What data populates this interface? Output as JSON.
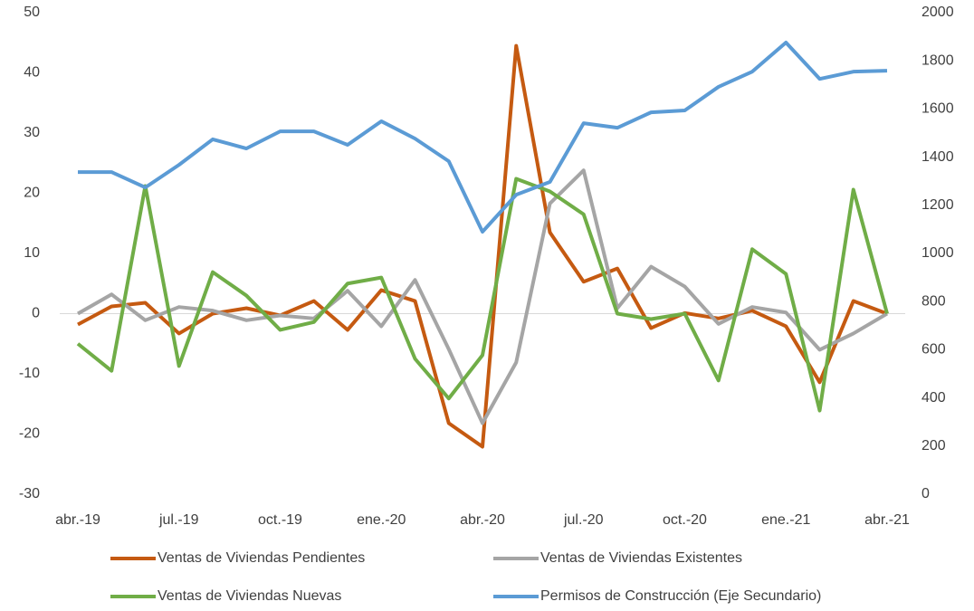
{
  "chart_data": {
    "type": "line",
    "categories": [
      "abr.-19",
      null,
      null,
      "jul.-19",
      null,
      null,
      "oct.-19",
      null,
      null,
      "ene.-20",
      null,
      null,
      "abr.-20",
      null,
      null,
      "jul.-20",
      null,
      null,
      "oct.-20",
      null,
      null,
      "ene.-21",
      null,
      null,
      "abr.-21"
    ],
    "series": [
      {
        "name": "Ventas de Viviendas Pendientes",
        "color": "#c55a11",
        "values": [
          -1.8,
          1.2,
          1.8,
          -3.3,
          0,
          0.9,
          -0.3,
          2.1,
          -2.7,
          3.9,
          2.1,
          -18.2,
          -22.1,
          44.5,
          13.5,
          5.3,
          7.5,
          -2.4,
          0.1,
          -0.8,
          0.5,
          -2.1,
          -11.4,
          2.1,
          0
        ]
      },
      {
        "name": "Ventas de Viviendas Existentes",
        "color": "#a5a5a5",
        "values": [
          0,
          3.2,
          -1.1,
          1.1,
          0.5,
          -1.1,
          -0.3,
          -0.8,
          3.8,
          -2.1,
          5.6,
          -5.9,
          -18.2,
          -8.1,
          18.3,
          23.8,
          0.9,
          7.8,
          4.5,
          -1.7,
          1.1,
          0.2,
          -6,
          -3.3,
          0
        ]
      },
      {
        "name": "Ventas de Viviendas Nuevas",
        "color": "#70ad47",
        "values": [
          -5,
          -9.5,
          21.2,
          -8.7,
          6.9,
          3,
          -2.7,
          -1.4,
          5,
          6,
          -7.5,
          -14.1,
          -6.9,
          22.4,
          20.3,
          16.5,
          0,
          -0.9,
          0,
          -11.1,
          10.7,
          6.6,
          -16.1,
          20.6,
          0
        ]
      },
      {
        "name": "Permisos de Construcción (Eje Secundario)",
        "color": "#5b9bd5",
        "axis": "y2",
        "values": [
          1338,
          1338,
          1274,
          1368,
          1474,
          1436,
          1507,
          1507,
          1451,
          1549,
          1477,
          1383,
          1090,
          1244,
          1297,
          1541,
          1522,
          1586,
          1594,
          1692,
          1755,
          1876,
          1725,
          1755,
          1759
        ]
      }
    ],
    "ylim": [
      -30,
      50
    ],
    "yticks": [
      -30,
      -20,
      -10,
      0,
      10,
      20,
      30,
      40,
      50
    ],
    "y2lim": [
      0,
      2000
    ],
    "y2ticks": [
      0,
      200,
      400,
      600,
      800,
      1000,
      1200,
      1400,
      1600,
      1800,
      2000
    ],
    "legend": "bottom"
  }
}
